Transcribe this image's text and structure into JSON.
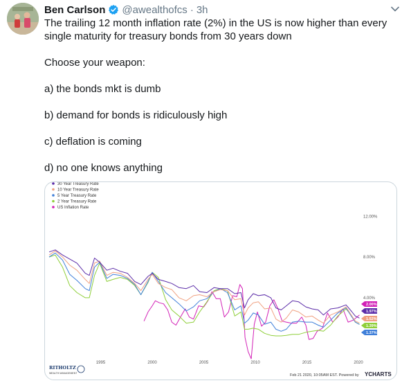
{
  "tweet": {
    "author_name": "Ben Carlson",
    "handle": "@awealthofcs",
    "separator": "·",
    "time": "3h",
    "lines": [
      "The trailing 12 month inflation rate (2%) in the US is now higher than every single maturity for treasury bonds from 30 years down",
      "Choose your weapon:",
      "a) the bonds mkt is dumb",
      "b) demand for bonds is ridiculously high",
      "c) deflation is coming",
      "d) no one knows anything"
    ]
  },
  "icons": {
    "verified": "verified-badge-icon",
    "caret": "chevron-down-icon"
  },
  "colors": {
    "twitter_blue": "#1da1f2",
    "series_30y": "#5b2ca8",
    "series_10y": "#f0a080",
    "series_5y": "#3f7fd9",
    "series_2y": "#8fcf3a",
    "series_infl": "#d21fb6"
  },
  "chart_data": {
    "type": "line",
    "x_range": [
      1990,
      2020.2
    ],
    "y_range": [
      -2,
      14
    ],
    "xticks": [
      "1995",
      "2000",
      "2005",
      "2010",
      "2015",
      "2020"
    ],
    "xtick_values": [
      1995,
      2000,
      2005,
      2010,
      2015,
      2020
    ],
    "yticks": [
      "4.00%",
      "8.00%",
      "12.00%"
    ],
    "ytick_values": [
      4,
      8,
      12
    ],
    "legend_placement": "top-left",
    "grid": false,
    "series": [
      {
        "name": "30 Year Treasury Rate",
        "color": "#5b2ca8",
        "end_label": "2.00%",
        "x": [
          1990,
          1990.6,
          1991.3,
          1992,
          1992.7,
          1993.5,
          1993.9,
          1994.4,
          1994.9,
          1995.6,
          1996.2,
          1996.9,
          1997.6,
          1998.3,
          1998.9,
          1999.6,
          2000,
          2000.6,
          2001.3,
          2001.9,
          2002.6,
          2003.3,
          2004,
          2004.6,
          2005.3,
          2006,
          2006.6,
          2007.3,
          2008,
          2008.6,
          2008.95,
          2009.3,
          2009.8,
          2010.3,
          2010.9,
          2011.5,
          2012,
          2012.5,
          2013,
          2013.6,
          2014.2,
          2014.9,
          2015.5,
          2016.1,
          2016.6,
          2017.3,
          2018,
          2018.8,
          2019.3,
          2019.7,
          2020.1
        ],
        "y": [
          8.5,
          8.7,
          8.2,
          7.8,
          7.4,
          6.4,
          6.2,
          7.9,
          7.5,
          6.7,
          6.9,
          6.6,
          6.4,
          5.6,
          5.3,
          6.1,
          6.4,
          5.8,
          5.6,
          5.4,
          5.0,
          4.9,
          5.2,
          4.6,
          4.5,
          5.0,
          4.9,
          4.9,
          4.4,
          4.5,
          3.0,
          3.8,
          4.4,
          4.2,
          4.3,
          4.0,
          3.0,
          2.8,
          3.2,
          3.7,
          3.6,
          3.1,
          2.9,
          2.8,
          2.3,
          2.9,
          3.0,
          3.3,
          2.7,
          2.2,
          2.0
        ]
      },
      {
        "name": "10 Year Treasury Rate",
        "color": "#f0a080",
        "end_label": "1.52%",
        "x": [
          1990,
          1990.6,
          1991.3,
          1992,
          1992.7,
          1993.5,
          1993.9,
          1994.4,
          1994.9,
          1995.6,
          1996.2,
          1996.9,
          1997.6,
          1998.3,
          1998.9,
          1999.6,
          2000,
          2000.6,
          2001.3,
          2001.9,
          2002.6,
          2003.3,
          2004,
          2004.6,
          2005.3,
          2006,
          2006.6,
          2007.3,
          2008,
          2008.6,
          2008.95,
          2009.3,
          2009.8,
          2010.3,
          2010.9,
          2011.5,
          2012,
          2012.5,
          2013,
          2013.6,
          2014.2,
          2014.9,
          2015.5,
          2016.1,
          2016.6,
          2017.3,
          2018,
          2018.8,
          2019.3,
          2019.7,
          2020.1
        ],
        "y": [
          8.2,
          8.6,
          8.0,
          7.2,
          6.7,
          5.8,
          5.4,
          7.4,
          7.6,
          6.2,
          6.5,
          6.4,
          6.0,
          5.4,
          4.7,
          5.8,
          6.3,
          5.4,
          5.0,
          4.8,
          4.0,
          3.7,
          4.2,
          4.3,
          4.1,
          4.6,
          4.8,
          4.7,
          3.8,
          3.9,
          2.3,
          3.0,
          3.5,
          3.6,
          2.9,
          3.0,
          1.9,
          1.6,
          2.0,
          2.8,
          2.6,
          2.1,
          2.2,
          1.8,
          1.5,
          2.3,
          2.6,
          3.1,
          2.3,
          1.7,
          1.52
        ]
      },
      {
        "name": "5 Year Treasury Rate",
        "color": "#3f7fd9",
        "end_label": "1.37%",
        "x": [
          1990,
          1990.6,
          1991.3,
          1992,
          1992.7,
          1993.5,
          1993.9,
          1994.4,
          1994.9,
          1995.6,
          1996.2,
          1996.9,
          1997.6,
          1998.3,
          1998.9,
          1999.6,
          2000,
          2000.6,
          2001.3,
          2001.9,
          2002.6,
          2003.3,
          2004,
          2004.6,
          2005.3,
          2006,
          2006.6,
          2007.3,
          2008,
          2008.6,
          2008.95,
          2009.3,
          2009.8,
          2010.3,
          2010.9,
          2011.5,
          2012,
          2012.5,
          2013,
          2013.6,
          2014.2,
          2014.9,
          2015.5,
          2016.1,
          2016.6,
          2017.3,
          2018,
          2018.8,
          2019.3,
          2019.7,
          2020.1
        ],
        "y": [
          8.0,
          8.4,
          7.7,
          6.3,
          5.7,
          4.9,
          4.7,
          7.0,
          7.5,
          5.9,
          6.3,
          6.2,
          5.9,
          5.3,
          4.3,
          5.6,
          6.5,
          5.6,
          4.5,
          4.0,
          3.4,
          2.7,
          3.1,
          3.7,
          3.9,
          4.6,
          4.9,
          4.5,
          2.8,
          3.2,
          1.5,
          1.8,
          2.5,
          2.3,
          1.4,
          1.6,
          0.9,
          0.7,
          0.9,
          1.6,
          1.7,
          1.6,
          1.6,
          1.3,
          1.1,
          1.8,
          2.5,
          3.0,
          2.2,
          1.6,
          1.37
        ]
      },
      {
        "name": "2 Year Treasury Rate",
        "color": "#8fcf3a",
        "end_label": "1.39%",
        "x": [
          1990,
          1990.6,
          1991.3,
          1992,
          1992.7,
          1993.5,
          1993.9,
          1994.4,
          1994.9,
          1995.6,
          1996.2,
          1996.9,
          1997.6,
          1998.3,
          1998.9,
          1999.6,
          2000,
          2000.6,
          2001.3,
          2001.9,
          2002.6,
          2003.3,
          2004,
          2004.6,
          2005.3,
          2006,
          2006.6,
          2007.3,
          2008,
          2008.6,
          2008.95,
          2009.3,
          2009.8,
          2010.3,
          2010.9,
          2011.5,
          2012,
          2012.5,
          2013,
          2013.6,
          2014.2,
          2014.9,
          2015.5,
          2016.1,
          2016.6,
          2017.3,
          2018,
          2018.8,
          2019.3,
          2019.7,
          2020.1
        ],
        "y": [
          8.0,
          8.2,
          7.0,
          5.2,
          4.5,
          4.0,
          4.0,
          6.2,
          7.4,
          5.6,
          5.8,
          6.0,
          5.8,
          5.2,
          4.3,
          5.5,
          6.5,
          6.0,
          3.8,
          2.8,
          2.2,
          1.5,
          1.6,
          2.6,
          3.6,
          4.7,
          4.9,
          4.7,
          2.2,
          2.6,
          0.9,
          0.9,
          1.0,
          0.9,
          0.5,
          0.3,
          0.25,
          0.25,
          0.3,
          0.4,
          0.4,
          0.6,
          0.7,
          0.8,
          0.7,
          1.3,
          2.2,
          2.9,
          2.3,
          1.6,
          1.39
        ]
      },
      {
        "name": "US Inflation Rate",
        "color": "#d21fb6",
        "end_label": "",
        "x": [
          1999.2,
          1999.6,
          2000,
          2000.3,
          2000.7,
          2001.1,
          2001.5,
          2001.9,
          2002.3,
          2002.8,
          2003.2,
          2003.6,
          2004,
          2004.5,
          2005,
          2005.4,
          2005.8,
          2006.2,
          2006.6,
          2007,
          2007.4,
          2007.8,
          2008.2,
          2008.5,
          2008.75,
          2009,
          2009.3,
          2009.6,
          2009.9,
          2010.2,
          2010.6,
          2011,
          2011.4,
          2011.8,
          2012.2,
          2012.6,
          2013,
          2013.5,
          2014,
          2014.5,
          2014.9,
          2015.2,
          2015.6,
          2016,
          2016.5,
          2017,
          2017.5,
          2018,
          2018.5,
          2019,
          2019.5,
          2020.1
        ],
        "y": [
          1.7,
          2.6,
          3.2,
          3.7,
          3.5,
          3.4,
          2.8,
          1.6,
          1.3,
          2.2,
          2.9,
          2.1,
          1.9,
          3.2,
          3.1,
          3.7,
          4.6,
          3.9,
          3.9,
          2.1,
          2.6,
          4.2,
          4.1,
          5.3,
          4.9,
          0.1,
          -1.3,
          -2.0,
          1.4,
          2.6,
          1.2,
          1.6,
          3.2,
          3.8,
          2.9,
          1.7,
          1.6,
          1.5,
          1.5,
          2.1,
          1.3,
          -0.1,
          0.0,
          0.7,
          1.0,
          2.5,
          1.6,
          2.1,
          2.9,
          1.6,
          1.8,
          2.3
        ]
      }
    ]
  },
  "chart_footer": {
    "brand": "RITHOLTZ",
    "brand_sub": "WEALTH MANAGEMENT",
    "timestamp": "Feb 21 2020, 10:05AM EST. Powered by",
    "ycharts": "YCHARTS"
  }
}
